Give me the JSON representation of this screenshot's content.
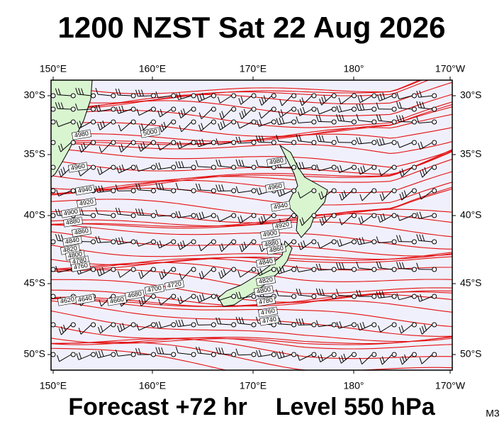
{
  "header": {
    "title": "1200 NZST Sat 22 Aug 2026"
  },
  "axes": {
    "lon_labels": [
      "150°E",
      "160°E",
      "170°E",
      "180°",
      "170°W"
    ],
    "lat_labels": [
      "30°S",
      "35°S",
      "40°S",
      "45°S",
      "50°S"
    ]
  },
  "contour_labels": [
    "4980",
    "5000",
    "4960",
    "4940",
    "4920",
    "4900",
    "4880",
    "4860",
    "4840",
    "4820",
    "4800",
    "4780",
    "4760",
    "4620",
    "4640",
    "4660",
    "4680",
    "4700",
    "4720",
    "4980",
    "4960",
    "4940",
    "4920",
    "4900",
    "4880",
    "4860",
    "4840",
    "4820",
    "4800",
    "4780",
    "4760",
    "4740"
  ],
  "footer": {
    "forecast": "Forecast +72 hr",
    "level": "Level 550 hPa",
    "code": "M3"
  }
}
